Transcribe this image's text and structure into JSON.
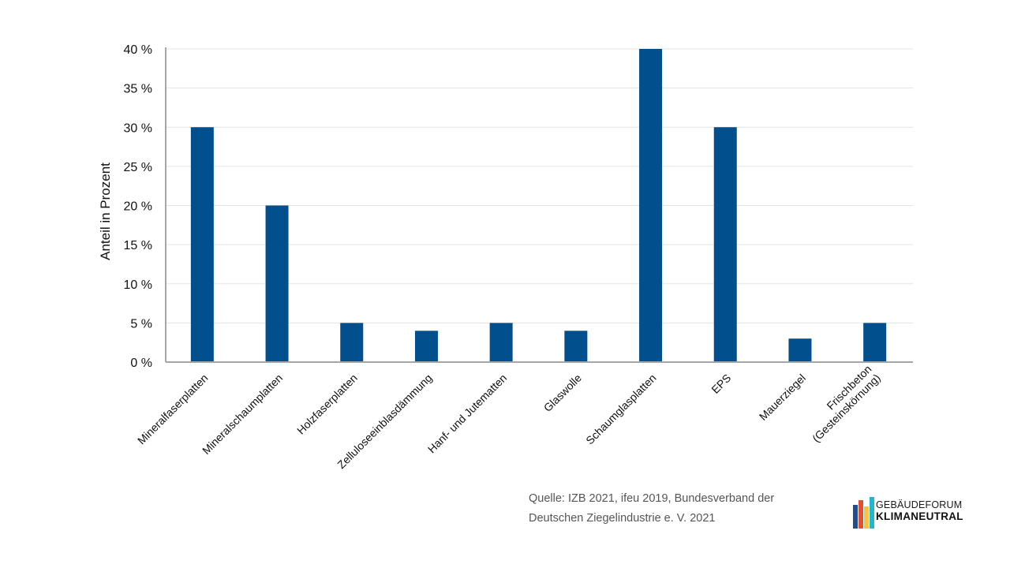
{
  "chart_data": {
    "type": "bar",
    "title": "",
    "xlabel": "",
    "ylabel": "Anteil in Prozent",
    "ylim": [
      0,
      40
    ],
    "yticks": [
      "0 %",
      "5 %",
      "10 %",
      "15 %",
      "20 %",
      "25 %",
      "30 %",
      "35 %",
      "40 %"
    ],
    "grid": true,
    "categories": [
      [
        "Mineralfaserplatten"
      ],
      [
        "Mineralschaumplatten"
      ],
      [
        "Holzfaserplatten"
      ],
      [
        "Zelluloseeinblasdämmung"
      ],
      [
        "Hanf- und Jutematten"
      ],
      [
        "Glaswolle"
      ],
      [
        "Schaumglasplatten"
      ],
      [
        "EPS"
      ],
      [
        "Mauerziegel"
      ],
      [
        "Frischbeton",
        "(Gesteinskörnung)"
      ]
    ],
    "series": [
      {
        "values": [
          30,
          20,
          5,
          4,
          5,
          4,
          40,
          30,
          3,
          5
        ],
        "color": "#024f8d"
      }
    ]
  },
  "source": {
    "line1": "Quelle: IZB 2021, ifeu 2019, Bundesverband der",
    "line2": "Deutschen Ziegelindustrie e. V. 2021"
  },
  "logo": {
    "line1": "GEBÄUDEFORUM",
    "line2": "KLIMANEUTRAL",
    "colors": [
      "#1f4e8c",
      "#e2512e",
      "#f6c342",
      "#21b6d3"
    ]
  }
}
